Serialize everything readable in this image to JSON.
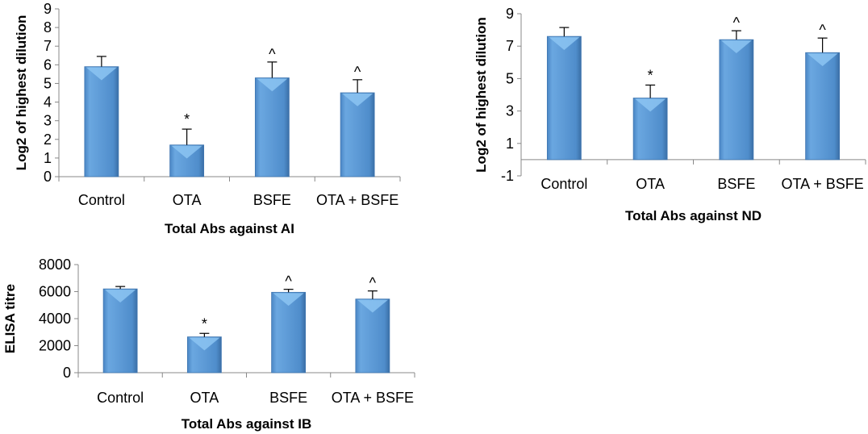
{
  "chart_data": [
    {
      "type": "bar",
      "title": "",
      "xlabel": "Total Abs against AI",
      "ylabel": "Log2 of highest dilution",
      "categories": [
        "Control",
        "OTA",
        "BSFE",
        "OTA + BSFE"
      ],
      "values": [
        5.9,
        1.7,
        5.3,
        4.5
      ],
      "error_upper": [
        0.55,
        0.85,
        0.85,
        0.7
      ],
      "annotations": [
        "",
        "*",
        "^",
        "^"
      ],
      "ylim": [
        0,
        9
      ],
      "yticks": [
        0,
        1,
        2,
        3,
        4,
        5,
        6,
        7,
        8,
        9
      ],
      "grid": false,
      "bar_color": "#5b9bd5"
    },
    {
      "type": "bar",
      "title": "",
      "xlabel": "Total Abs against ND",
      "ylabel": "Log2 of highest dilution",
      "categories": [
        "Control",
        "OTA",
        "BSFE",
        "OTA + BSFE"
      ],
      "values": [
        7.6,
        3.8,
        7.4,
        6.6
      ],
      "error_upper": [
        0.55,
        0.8,
        0.55,
        0.9
      ],
      "annotations": [
        "",
        "*",
        "^",
        "^"
      ],
      "ylim": [
        -1,
        9
      ],
      "yticks": [
        -1,
        1,
        3,
        5,
        7,
        9
      ],
      "grid": false,
      "bar_color": "#5b9bd5"
    },
    {
      "type": "bar",
      "title": "",
      "xlabel": "Total Abs against IB",
      "ylabel": "ELISA titre",
      "categories": [
        "Control",
        "OTA",
        "BSFE",
        "OTA + BSFE"
      ],
      "values": [
        6200,
        2650,
        5950,
        5450
      ],
      "error_upper": [
        180,
        260,
        220,
        600
      ],
      "annotations": [
        "",
        "*",
        "^",
        "^"
      ],
      "ylim": [
        0,
        8000
      ],
      "yticks": [
        0,
        2000,
        4000,
        6000,
        8000
      ],
      "grid": false,
      "bar_color": "#5b9bd5"
    }
  ]
}
